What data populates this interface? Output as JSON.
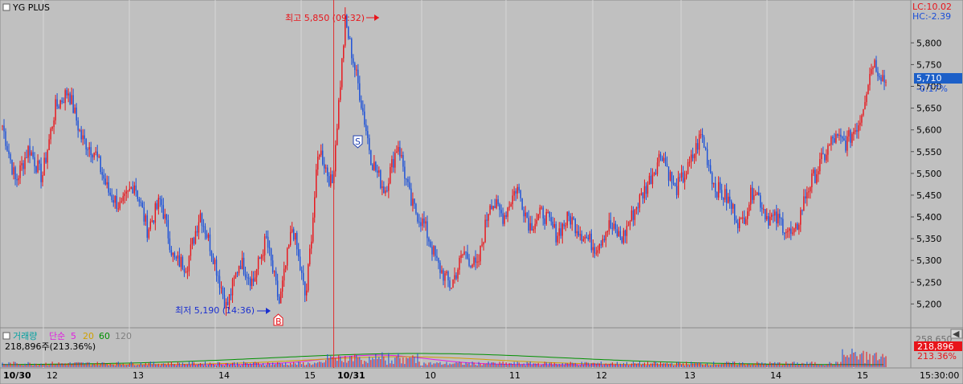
{
  "window": {
    "title": "YG PLUS",
    "lc_label": "LC:10.02",
    "hc_label": "HC:-2.39",
    "scroll_button_glyph": "◀"
  },
  "chart_data": [
    {
      "type": "candlestick",
      "title": "YG PLUS",
      "ylim": [
        5160,
        5880
      ],
      "y_ticks": [
        "5,800",
        "5,750",
        "5,700",
        "5,650",
        "5,600",
        "5,550",
        "5,500",
        "5,450",
        "5,400",
        "5,350",
        "5,300",
        "5,250",
        "5,200"
      ],
      "y_tick_values": [
        5800,
        5750,
        5700,
        5650,
        5600,
        5550,
        5500,
        5450,
        5400,
        5350,
        5300,
        5250,
        5200
      ],
      "time_labels": [
        "10/30",
        "12",
        "13",
        "14",
        "15",
        "10/31",
        "10",
        "11",
        "12",
        "13",
        "14",
        "15",
        "15:30:00"
      ],
      "day_separator_label": "10/31",
      "colors": {
        "up": "#e8141a",
        "down": "#1a4fd8",
        "background": "#c0c0c0",
        "grid": "#d4d4d4"
      },
      "anchor_prices": [
        5610,
        5480,
        5560,
        5490,
        5650,
        5690,
        5580,
        5550,
        5460,
        5420,
        5480,
        5370,
        5440,
        5300,
        5290,
        5410,
        5310,
        5190,
        5300,
        5250,
        5350,
        5200,
        5380,
        5210,
        5560,
        5470,
        5850,
        5700,
        5530,
        5460,
        5570,
        5430,
        5380,
        5290,
        5240,
        5320,
        5280,
        5440,
        5400,
        5470,
        5380,
        5410,
        5360,
        5400,
        5360,
        5330,
        5380,
        5350,
        5420,
        5480,
        5550,
        5460,
        5510,
        5590,
        5470,
        5440,
        5380,
        5470,
        5400,
        5390,
        5350,
        5460,
        5520,
        5580,
        5570,
        5620,
        5760,
        5710
      ],
      "current_price": "5,710",
      "current_change": "-0.17%",
      "annotations": {
        "high": {
          "label": "최고 5,850 (09:32)",
          "value": 5850,
          "time": "09:32"
        },
        "low": {
          "label": "최저 5,190 (14:36)",
          "value": 5190,
          "time": "14:36"
        },
        "markers": [
          {
            "label": "S",
            "value": 5560,
            "color": "#2040b0"
          },
          {
            "label": "B",
            "value": 5190,
            "color": "#e8141a"
          }
        ]
      }
    },
    {
      "type": "bar",
      "title": "거래량",
      "legend": [
        {
          "name": "거래량",
          "color": "#00a0a0"
        },
        {
          "name": "단순",
          "color": "#e020e0"
        },
        {
          "name": "5",
          "color": "#e020e0"
        },
        {
          "name": "20",
          "color": "#d0a000"
        },
        {
          "name": "60",
          "color": "#009000"
        },
        {
          "name": "120",
          "color": "#808080"
        }
      ],
      "summary_text": "218,896주(213.36%)",
      "current_volume": "218,896",
      "current_ratio": "213.36%",
      "ticks": [
        "258,650"
      ]
    }
  ]
}
